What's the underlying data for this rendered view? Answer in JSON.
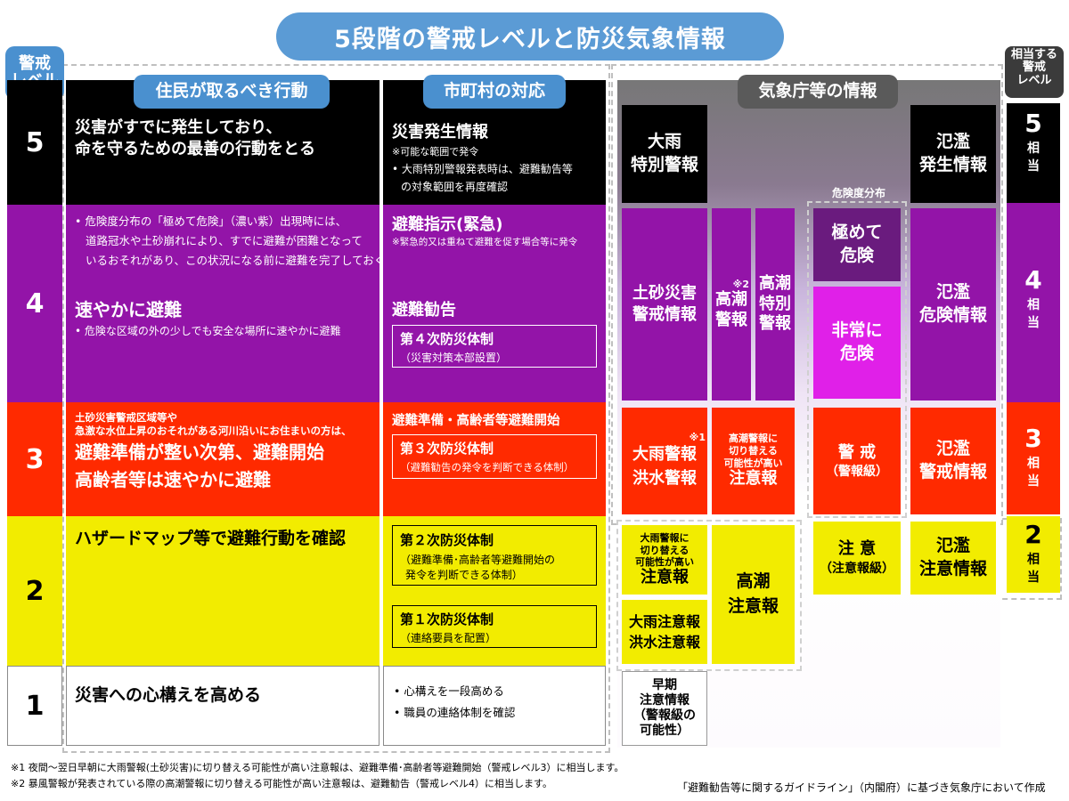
{
  "title": "5段階の警戒レベルと防災気象情報",
  "left_header": {
    "line1": "警戒",
    "line2": "レベル"
  },
  "right_header": {
    "line1": "相当する",
    "line2": "警戒",
    "line3": "レベル"
  },
  "col_headers": {
    "residents": "住民が取るべき行動",
    "municipality": "市町村の対応",
    "jma": "気象庁等の情報"
  },
  "levels": {
    "l5": "5",
    "l4": "4",
    "l3": "3",
    "l2": "2",
    "l1": "1"
  },
  "residents": {
    "l5_line1": "災害がすでに発生しており、",
    "l5_line2": "命を守るための最善の行動をとる",
    "l4_note1": "• 危険度分布の「極めて危険」（濃い紫）出現時には、",
    "l4_note2": "道路冠水や土砂崩れにより、すでに避難が困難となって",
    "l4_note3": "いるおそれがあり、この状況になる前に避難を完了しておく",
    "l4_main": "速やかに避難",
    "l4_sub": "• 危険な区域の外の少しでも安全な場所に速やかに避難",
    "l3_small1": "土砂災害警戒区域等や",
    "l3_small2": "急激な水位上昇のおそれがある河川沿いにお住まいの方は、",
    "l3_main1": "避難準備が整い次第、避難開始",
    "l3_main2": "高齢者等は速やかに避難",
    "l2_main": "ハザードマップ等で避難行動を確認",
    "l1_main": "災害への心構えを高める"
  },
  "municipality": {
    "l5_title": "災害発生情報",
    "l5_note": "※可能な範囲で発令",
    "l5_bullet1": "• 大雨特別警報発表時は、避難勧告等",
    "l5_bullet2": "の対象範囲を再度確認",
    "l4_title": "避難指示(緊急)",
    "l4_note": "※緊急的又は重ねて避難を促す場合等に発令",
    "l4_title2": "避難勧告",
    "l4_box_title": "第４次防災体制",
    "l4_box_sub": "（災害対策本部設置）",
    "l3_title": "避難準備・高齢者等避難開始",
    "l3_box_title": "第３次防災体制",
    "l3_box_sub": "（避難勧告の発令を判断できる体制）",
    "l2_box1_title": "第２次防災体制",
    "l2_box1_sub1": "（避難準備･高齢者等避難開始の",
    "l2_box1_sub2": "発令を判断できる体制）",
    "l2_box2_title": "第１次防災体制",
    "l2_box2_sub": "（連絡要員を配置）",
    "l1_bullet1": "• 心構えを一段高める",
    "l1_bullet2": "• 職員の連絡体制を確認"
  },
  "jma": {
    "heavy_rain_special": {
      "line1": "大雨",
      "line2": "特別警報"
    },
    "flood_occurrence": {
      "line1": "氾濫",
      "line2": "発生情報"
    },
    "risk_map_label": "危険度分布",
    "extreme_danger": {
      "line1": "極めて",
      "line2": "危険"
    },
    "very_danger": {
      "line1": "非常に",
      "line2": "危険"
    },
    "landslide": {
      "line1": "土砂災害",
      "line2": "警戒情報"
    },
    "storm_surge_warn": {
      "mark": "※2",
      "line1": "高潮",
      "line2": "警報"
    },
    "storm_surge_special": {
      "line1": "高潮",
      "line2": "特別",
      "line3": "警報"
    },
    "flood_danger": {
      "line1": "氾濫",
      "line2": "危険情報"
    },
    "heavy_rain_warn": {
      "mark": "※1",
      "line1": "大雨警報",
      "line2": "洪水警報"
    },
    "surge_advisory_switch": {
      "line1": "高潮警報に",
      "line2": "切り替える",
      "line3": "可能性が高い",
      "line4": "注意報"
    },
    "warning_level": {
      "line1": "警 戒",
      "line2": "（警報級）"
    },
    "flood_warn": {
      "line1": "氾濫",
      "line2": "警戒情報"
    },
    "rain_advisory_switch": {
      "line1": "大雨警報に",
      "line2": "切り替える",
      "line3": "可能性が高い",
      "line4": "注意報"
    },
    "surge_advisory": {
      "line1": "高潮",
      "line2": "注意報"
    },
    "caution_level": {
      "line1": "注 意",
      "line2": "（注意報級）"
    },
    "flood_caution": {
      "line1": "氾濫",
      "line2": "注意情報"
    },
    "rain_flood_advisory": {
      "line1": "大雨注意報",
      "line2": "洪水注意報"
    },
    "early_warning": {
      "line1": "早期",
      "line2": "注意情報",
      "line3": "（警報級の",
      "line4": "可能性）"
    }
  },
  "side_levels": {
    "l5": {
      "num": "5",
      "s1": "相",
      "s2": "当"
    },
    "l4": {
      "num": "4",
      "s1": "相",
      "s2": "当"
    },
    "l3": {
      "num": "3",
      "s1": "相",
      "s2": "当"
    },
    "l2": {
      "num": "2",
      "s1": "相",
      "s2": "当"
    }
  },
  "footnotes": {
    "n1": "※1 夜間～翌日早朝に大雨警報(土砂災害)に切り替える可能性が高い注意報は、避難準備･高齢者等避難開始（警戒レベル3）に相当します。",
    "n2": "※2 暴風警報が発表されている際の高潮警報に切り替える可能性が高い注意報は、避難勧告（警戒レベル4）に相当します。",
    "source": "「避難勧告等に関するガイドライン」（内閣府）に基づき気象庁において作成"
  },
  "colors": {
    "level5": "#000000",
    "level4": "#9314a8",
    "level3": "#ff2a00",
    "level2": "#f2ec00",
    "level1": "#ffffff",
    "header_blue": "#4a90cf"
  }
}
